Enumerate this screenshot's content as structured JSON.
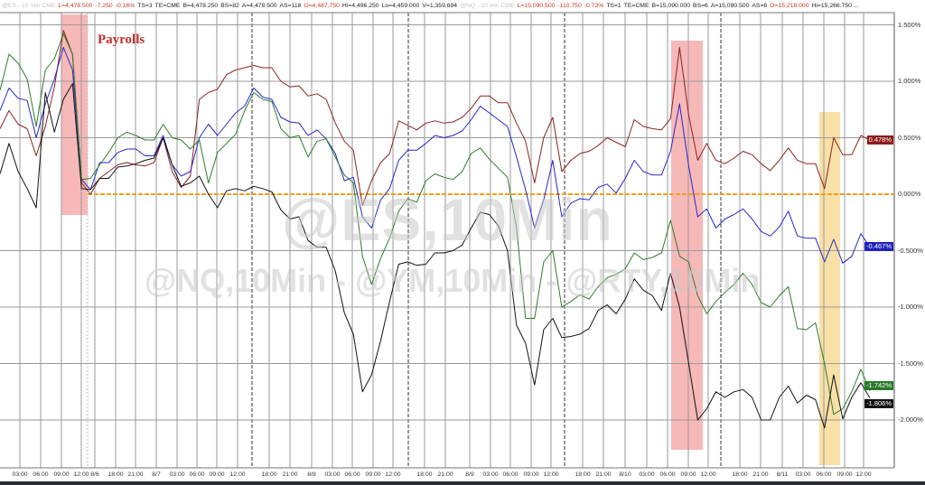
{
  "header": {
    "es": {
      "symbol": "@ES - 10 min  CME",
      "last": "L=4,478.500",
      "chg": "-7.250",
      "pct": "-0.16%",
      "ts": "TS=3",
      "te": "TE=CME",
      "bid": "B=4,478.250",
      "bs": "BS=82",
      "ask": "A=4,478.500",
      "as": "AS=118",
      "open": "O=4,487.750",
      "hi": "Hi=4,496.250",
      "lo": "Lo=4,459.000",
      "vol": "V=1,359,694"
    },
    "nq": {
      "symbol": "@NQ - 10 min  CME",
      "last": "L=15,090.500",
      "chg": "-110.750",
      "pct": "-0.73%",
      "ts": "TS=1",
      "te": "TE=CME",
      "bid": "B=15,090.000",
      "bs": "BS=6",
      "ask": "A=15,090.500",
      "as": "AS=6",
      "open": "O=15,218.000",
      "hi": "Hi=15,266.750 ..."
    }
  },
  "annotation": "Payrolls",
  "watermark": {
    "main": "@ES,10Min",
    "sub": "@NQ,10Min - @YM,10Min - @RTY,10Min"
  },
  "chart_data": {
    "type": "line",
    "title": "",
    "xlabel": "",
    "ylabel": "",
    "ylim": [
      -2.4,
      1.7
    ],
    "y_ticks": [
      "1.500%",
      "1.000%",
      "0.500%",
      "0.000%",
      "-0.500%",
      "-1.000%",
      "-1.500%",
      "-2.000%"
    ],
    "y_tick_values": [
      1.5,
      1.0,
      0.5,
      0.0,
      -0.5,
      -1.0,
      -1.5,
      -2.0
    ],
    "x_ticks": [
      "03:00",
      "06:00",
      "09:00",
      "12:00",
      "8/6",
      "18:00",
      "21:00",
      "8/7",
      "03:00",
      "06:00",
      "09:00",
      "12:00",
      "18:00",
      "21:00",
      "8/8",
      "03:00",
      "06:00",
      "09:00",
      "12:00",
      "18:00",
      "21:00",
      "8/9",
      "03:00",
      "06:00",
      "09:00",
      "12:00",
      "18:00",
      "21:00",
      "8/10",
      "03:00",
      "06:00",
      "09:00",
      "12:00",
      "18:00",
      "21:00",
      "8/11",
      "03:00",
      "06:00",
      "09:00",
      "12:00"
    ],
    "grid": true,
    "zero_line_color": "#f0a020",
    "highlight_colors": [
      "#f4a0a0",
      "#f6d58a"
    ],
    "series": [
      {
        "color": "#8b2323",
        "last_label": "0.478%",
        "label_bg": "#8b1a1a",
        "values": [
          0.58,
          0.74,
          0.62,
          0.58,
          0.34,
          0.6,
          0.95,
          1.45,
          1.24,
          0.1,
          0.0,
          0.14,
          0.2,
          0.26,
          0.28,
          0.26,
          0.25,
          0.28,
          0.5,
          0.2,
          0.06,
          0.16,
          0.84,
          0.9,
          0.93,
          1.06,
          1.1,
          1.12,
          1.14,
          1.12,
          1.12,
          1.0,
          0.95,
          0.96,
          0.87,
          0.89,
          0.84,
          0.63,
          0.47,
          0.39,
          -0.1,
          0.12,
          0.28,
          0.36,
          0.65,
          0.61,
          0.57,
          0.63,
          0.65,
          0.63,
          0.64,
          0.68,
          0.76,
          0.87,
          0.87,
          0.81,
          0.81,
          0.63,
          0.47,
          0.1,
          0.5,
          0.68,
          0.2,
          0.3,
          0.36,
          0.38,
          0.43,
          0.5,
          0.46,
          0.42,
          0.66,
          0.6,
          0.58,
          0.57,
          0.67,
          1.3,
          0.7,
          0.3,
          0.45,
          0.3,
          0.27,
          0.32,
          0.38,
          0.35,
          0.27,
          0.21,
          0.3,
          0.41,
          0.3,
          0.27,
          0.27,
          0.05,
          0.5,
          0.35,
          0.35,
          0.52,
          0.478
        ]
      },
      {
        "color": "#2828c8",
        "last_label": "-0.467%",
        "label_bg": "#2020c0",
        "values": [
          0.74,
          0.94,
          0.85,
          0.83,
          0.5,
          0.8,
          1.02,
          1.3,
          1.1,
          0.13,
          0.04,
          0.28,
          0.28,
          0.37,
          0.4,
          0.4,
          0.34,
          0.34,
          0.52,
          0.26,
          0.16,
          0.2,
          0.5,
          0.62,
          0.52,
          0.62,
          0.72,
          0.78,
          0.94,
          0.86,
          0.84,
          0.68,
          0.64,
          0.63,
          0.52,
          0.57,
          0.49,
          0.36,
          0.12,
          0.15,
          -0.2,
          -0.3,
          -0.05,
          0.05,
          0.3,
          0.39,
          0.39,
          0.45,
          0.52,
          0.5,
          0.52,
          0.56,
          0.66,
          0.78,
          0.72,
          0.66,
          0.6,
          0.33,
          0.04,
          -0.3,
          -0.05,
          0.3,
          -0.2,
          -0.08,
          -0.04,
          -0.05,
          0.06,
          0.09,
          0.01,
          0.14,
          0.3,
          0.2,
          0.17,
          0.17,
          0.38,
          0.8,
          0.25,
          -0.2,
          -0.13,
          -0.3,
          -0.22,
          -0.18,
          -0.13,
          -0.22,
          -0.33,
          -0.37,
          -0.29,
          -0.15,
          -0.37,
          -0.39,
          -0.39,
          -0.6,
          -0.4,
          -0.61,
          -0.55,
          -0.35,
          -0.467
        ]
      },
      {
        "color": "#2e7d2e",
        "last_label": "-1.742%",
        "label_bg": "#2a7a2a",
        "values": [
          0.92,
          1.24,
          1.16,
          1.02,
          0.6,
          1.1,
          1.2,
          1.42,
          1.24,
          0.13,
          0.14,
          0.26,
          0.37,
          0.5,
          0.55,
          0.52,
          0.48,
          0.48,
          0.62,
          0.5,
          0.48,
          0.4,
          0.48,
          0.1,
          0.37,
          0.45,
          0.53,
          0.74,
          0.9,
          0.84,
          0.82,
          0.58,
          0.5,
          0.52,
          0.33,
          0.47,
          0.49,
          0.33,
          0.17,
          0.1,
          -0.55,
          -0.8,
          -0.57,
          -0.39,
          -0.15,
          -0.04,
          -0.07,
          0.12,
          0.18,
          0.15,
          0.13,
          0.2,
          0.36,
          0.41,
          0.31,
          0.23,
          0.15,
          -0.3,
          -1.1,
          -1.1,
          -0.6,
          -0.5,
          -1.0,
          -0.95,
          -0.89,
          -0.93,
          -0.82,
          -0.74,
          -0.71,
          -0.66,
          -0.52,
          -0.58,
          -0.56,
          -0.52,
          -0.23,
          -0.55,
          -0.6,
          -0.9,
          -1.06,
          -0.95,
          -0.87,
          -0.8,
          -0.7,
          -0.8,
          -0.96,
          -1.0,
          -0.9,
          -0.82,
          -1.19,
          -1.2,
          -1.14,
          -1.5,
          -1.95,
          -1.9,
          -1.75,
          -1.55,
          -1.742
        ]
      },
      {
        "color": "#111111",
        "last_label": "-1.806%",
        "label_bg": "#111111",
        "values": [
          0.18,
          0.45,
          0.2,
          0.05,
          -0.12,
          0.9,
          0.55,
          0.84,
          0.98,
          0.05,
          0.04,
          0.14,
          0.14,
          0.24,
          0.25,
          0.27,
          0.3,
          0.32,
          0.5,
          0.26,
          0.07,
          0.1,
          0.16,
          0.0,
          -0.12,
          0.03,
          0.05,
          0.03,
          0.07,
          0.05,
          0.02,
          -0.14,
          -0.22,
          -0.2,
          -0.41,
          -0.47,
          -0.47,
          -0.68,
          -1.05,
          -1.24,
          -1.75,
          -1.6,
          -1.3,
          -0.95,
          -0.62,
          -0.6,
          -0.63,
          -0.62,
          -0.52,
          -0.52,
          -0.5,
          -0.45,
          -0.3,
          -0.16,
          -0.18,
          -0.28,
          -0.5,
          -1.16,
          -1.32,
          -1.69,
          -1.2,
          -1.1,
          -1.27,
          -1.26,
          -1.24,
          -1.19,
          -1.03,
          -0.98,
          -1.06,
          -0.93,
          -0.75,
          -0.85,
          -0.9,
          -1.03,
          -0.7,
          -1.0,
          -1.5,
          -2.0,
          -1.9,
          -1.75,
          -1.8,
          -1.75,
          -1.73,
          -1.8,
          -2.0,
          -2.0,
          -1.8,
          -1.7,
          -1.85,
          -1.78,
          -1.82,
          -2.07,
          -1.6,
          -1.99,
          -1.8,
          -1.67,
          -1.806
        ]
      }
    ]
  }
}
